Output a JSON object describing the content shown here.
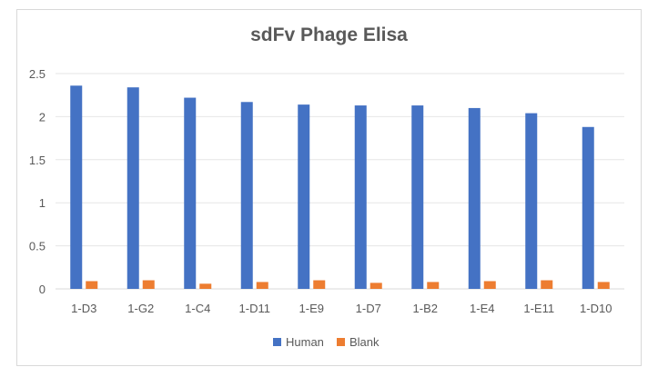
{
  "chart_data": {
    "type": "bar",
    "title": "sdFv Phage Elisa",
    "xlabel": "",
    "ylabel": "",
    "categories": [
      "1-D3",
      "1-G2",
      "1-C4",
      "1-D11",
      "1-E9",
      "1-D7",
      "1-B2",
      "1-E4",
      "1-E11",
      "1-D10"
    ],
    "series": [
      {
        "name": "Human",
        "color": "#4472c4",
        "values": [
          2.36,
          2.34,
          2.22,
          2.17,
          2.14,
          2.13,
          2.13,
          2.1,
          2.04,
          1.88
        ]
      },
      {
        "name": "Blank",
        "color": "#ed7d31",
        "values": [
          0.09,
          0.1,
          0.06,
          0.08,
          0.1,
          0.07,
          0.08,
          0.09,
          0.1,
          0.08
        ]
      }
    ],
    "yticks": [
      "0",
      "0.5",
      "1",
      "1.5",
      "2",
      "2.5"
    ],
    "ylim": [
      0,
      2.5
    ],
    "grid": true,
    "legend_position": "bottom"
  }
}
